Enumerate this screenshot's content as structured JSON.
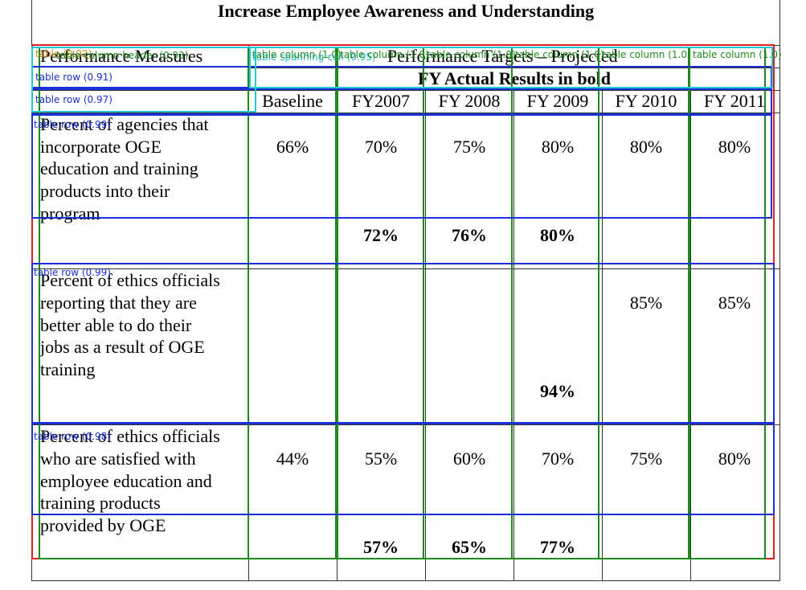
{
  "document": {
    "title": "Increase Employee Awareness and Understanding",
    "header": {
      "measures": "Performance Measures",
      "targets": "Performance Targets – Projected",
      "actual_note": "FY Actual Results in bold"
    },
    "columns": [
      "Baseline",
      "FY2007",
      "FY 2008",
      "FY 2009",
      "FY 2010",
      "FY 2011"
    ],
    "measures": [
      {
        "label_lines": [
          "Percent of agencies that",
          "incorporate OGE",
          "education and training",
          "products into their",
          "program"
        ],
        "targets": [
          "66%",
          "70%",
          "75%",
          "80%",
          "80%",
          "80%"
        ],
        "actuals": [
          "",
          "72%",
          "76%",
          "80%",
          "",
          ""
        ]
      },
      {
        "label_lines": [
          "Percent of ethics officials",
          "reporting that they are",
          "better able to do their",
          "jobs as a result of OGE",
          "training"
        ],
        "targets": [
          "",
          "",
          "",
          "",
          "85%",
          "85%"
        ],
        "actuals": [
          "",
          "",
          "",
          "94%",
          "",
          ""
        ]
      },
      {
        "label_lines": [
          "Percent of ethics officials",
          "who are satisfied with",
          "employee education and",
          "training products",
          "provided by OGE"
        ],
        "targets": [
          "44%",
          "55%",
          "60%",
          "70%",
          "75%",
          "80%"
        ],
        "actuals": [
          "",
          "57%",
          "65%",
          "77%",
          "",
          ""
        ]
      }
    ]
  },
  "overlay": {
    "colors": {
      "table": "#e02020",
      "row": "#1a2fd6",
      "column": "#1e8a1e",
      "spanning": "#20c8d8"
    },
    "table_label": "table (0.92)",
    "spanning_label": "table spanning cell (0.95)",
    "header_label": "table column header (0.93)",
    "row_labels": [
      "table row (0.91)",
      "table row (0.97)",
      "table row (0.99)",
      "table row (0.99)",
      "table row (0.98)"
    ],
    "column_labels": [
      "table column (1.0)",
      "table column (1.0)",
      "table column (1.0)",
      "table column (1.0)",
      "table column (1.0)",
      "table column (1.0)"
    ]
  }
}
